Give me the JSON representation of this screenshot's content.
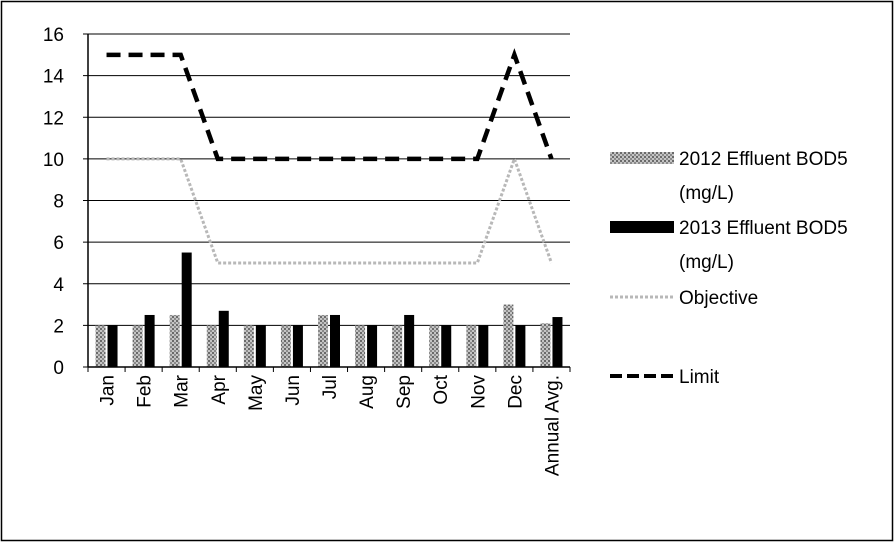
{
  "chart_data": {
    "type": "bar",
    "title": "",
    "xlabel": "",
    "ylabel": "",
    "ylim": [
      0,
      16
    ],
    "yticks": [
      0,
      2,
      4,
      6,
      8,
      10,
      12,
      14,
      16
    ],
    "grid": true,
    "legend_position": "right",
    "categories": [
      "Jan",
      "Feb",
      "Mar",
      "Apr",
      "May",
      "Jun",
      "Jul",
      "Aug",
      "Sep",
      "Oct",
      "Nov",
      "Dec",
      "Annual Avg."
    ],
    "series": [
      {
        "name": "2012 Effluent BOD5 (mg/L)",
        "kind": "bar",
        "style": "hatched",
        "color": "#8a8a8a",
        "values": [
          2.0,
          2.0,
          2.5,
          2.0,
          2.0,
          2.0,
          2.5,
          2.0,
          2.0,
          2.0,
          2.0,
          3.0,
          2.1
        ]
      },
      {
        "name": "2013 Effluent BOD5 (mg/L)",
        "kind": "bar",
        "style": "solid",
        "color": "#000000",
        "values": [
          2.0,
          2.5,
          5.5,
          2.7,
          2.0,
          2.0,
          2.5,
          2.0,
          2.5,
          2.0,
          2.0,
          2.0,
          2.4
        ]
      },
      {
        "name": "Objective",
        "kind": "line",
        "style": "dotted",
        "color": "#b8b8b8",
        "values": [
          10,
          10,
          10,
          5,
          5,
          5,
          5,
          5,
          5,
          5,
          5,
          10,
          5
        ]
      },
      {
        "name": "Limit",
        "kind": "line",
        "style": "dashed",
        "color": "#000000",
        "values": [
          15,
          15,
          15,
          10,
          10,
          10,
          10,
          10,
          10,
          10,
          10,
          15,
          10
        ]
      }
    ],
    "legend": [
      {
        "lines": [
          "2012 Effluent BOD5",
          "(mg/L)"
        ]
      },
      {
        "lines": [
          "2013 Effluent BOD5",
          "(mg/L)"
        ]
      },
      {
        "lines": [
          "Objective"
        ]
      },
      {
        "lines": [
          "Limit"
        ]
      }
    ]
  }
}
